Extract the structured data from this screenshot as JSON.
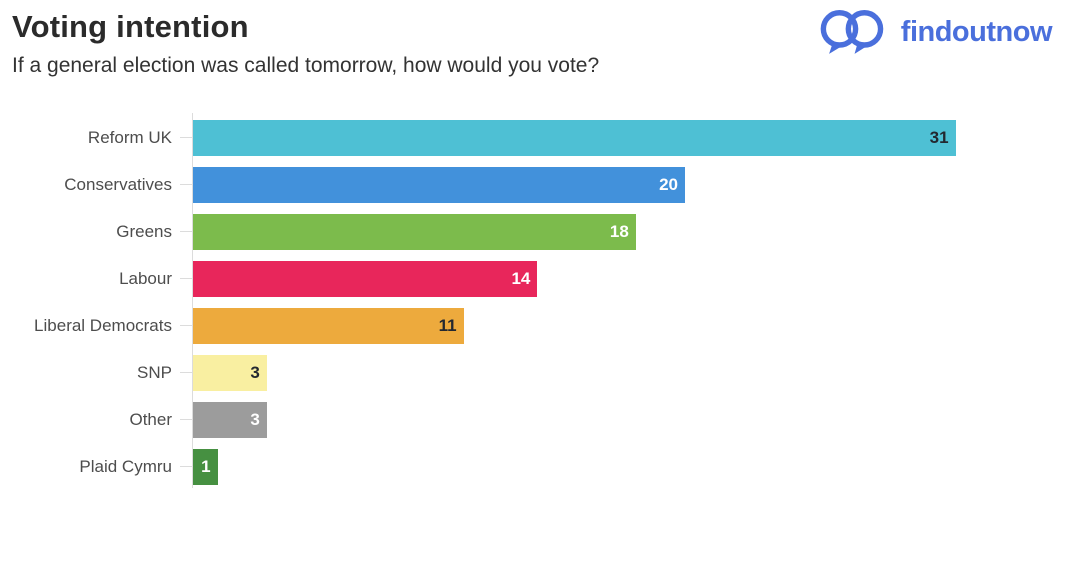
{
  "header": {
    "title": "Voting intention",
    "subtitle": "If a general election was called tomorrow, how would you vote?",
    "brand": {
      "name": "findoutnow",
      "color": "#4a6fdc",
      "logo_icon": "two-overlapping-speech-bubble-circles"
    }
  },
  "chart_data": {
    "type": "bar",
    "orientation": "horizontal",
    "title": "Voting intention",
    "subtitle": "If a general election was called tomorrow, how would you vote?",
    "categories": [
      "Reform UK",
      "Conservatives",
      "Greens",
      "Labour",
      "Liberal Democrats",
      "SNP",
      "Other",
      "Plaid Cymru"
    ],
    "values": [
      31,
      20,
      18,
      14,
      11,
      3,
      3,
      1
    ],
    "bar_colors": [
      "#4ec0d4",
      "#4291db",
      "#7cbb4c",
      "#e8265b",
      "#edaa3d",
      "#f9efa1",
      "#9c9c9c",
      "#469041"
    ],
    "value_label_colors": [
      "#232830",
      "#ffffff",
      "#ffffff",
      "#ffffff",
      "#232830",
      "#232830",
      "#ffffff",
      "#ffffff"
    ],
    "xlim": [
      0,
      31
    ],
    "grid": false,
    "legend": false,
    "value_labels": "inside-end",
    "axis_color": "#dcdcdc"
  }
}
